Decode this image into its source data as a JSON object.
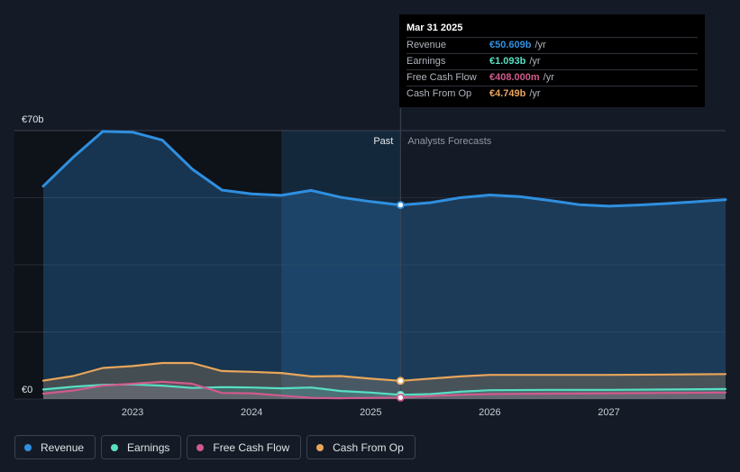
{
  "chart_data": {
    "type": "area",
    "title": "",
    "y_axis": {
      "top_label": "€70b",
      "bottom_label": "€0",
      "ylim": [
        0,
        70
      ]
    },
    "x_ticks": [
      "2023",
      "2024",
      "2025",
      "2026",
      "2027"
    ],
    "x_range": [
      2022.25,
      2027.98
    ],
    "divider_x": 2025.25,
    "past_label": "Past",
    "forecast_label": "Analysts Forecasts",
    "series": [
      {
        "name": "Revenue",
        "color": "#2f8fdf",
        "x": [
          2022.25,
          2022.5,
          2022.75,
          2023.0,
          2023.25,
          2023.5,
          2023.75,
          2024.0,
          2024.25,
          2024.5,
          2024.75,
          2025.0,
          2025.25,
          2025.5,
          2025.75,
          2026.0,
          2026.25,
          2026.5,
          2026.75,
          2027.0,
          2027.25,
          2027.5,
          2027.75,
          2027.98
        ],
        "values": [
          55.5,
          63,
          69.8,
          69.6,
          67.5,
          60,
          54.5,
          53.5,
          53.1,
          54.4,
          52.6,
          51.5,
          50.6,
          51.2,
          52.5,
          53.2,
          52.8,
          51.8,
          50.7,
          50.3,
          50.6,
          51.0,
          51.5,
          52.0
        ]
      },
      {
        "name": "Cash From Op",
        "color": "#e9a65a",
        "x": [
          2022.25,
          2022.5,
          2022.75,
          2023.0,
          2023.25,
          2023.5,
          2023.75,
          2024.0,
          2024.25,
          2024.5,
          2024.75,
          2025.0,
          2025.25,
          2025.75,
          2026.0,
          2026.5,
          2027.0,
          2027.5,
          2027.98
        ],
        "values": [
          4.8,
          6.0,
          8.1,
          8.6,
          9.4,
          9.4,
          7.3,
          7.1,
          6.8,
          5.9,
          6.0,
          5.3,
          4.749,
          5.9,
          6.3,
          6.3,
          6.3,
          6.4,
          6.5
        ]
      },
      {
        "name": "Earnings",
        "color": "#57dfc5",
        "x": [
          2022.25,
          2022.5,
          2022.75,
          2023.0,
          2023.25,
          2023.5,
          2023.75,
          2024.0,
          2024.25,
          2024.5,
          2024.75,
          2025.0,
          2025.25,
          2025.5,
          2025.75,
          2026.0,
          2026.5,
          2027.0,
          2027.5,
          2027.98
        ],
        "values": [
          2.5,
          3.2,
          3.7,
          3.8,
          3.5,
          2.9,
          3.1,
          3.0,
          2.8,
          3.0,
          2.1,
          1.7,
          1.093,
          1.3,
          1.9,
          2.3,
          2.4,
          2.4,
          2.5,
          2.6
        ]
      },
      {
        "name": "Free Cash Flow",
        "color": "#d05a8c",
        "x": [
          2022.25,
          2022.5,
          2022.75,
          2023.0,
          2023.25,
          2023.5,
          2023.75,
          2024.0,
          2024.25,
          2024.5,
          2024.75,
          2025.0,
          2025.25,
          2025.5,
          2025.75,
          2026.0,
          2026.5,
          2027.0,
          2027.5,
          2027.98
        ],
        "values": [
          1.4,
          2.2,
          3.5,
          4.0,
          4.5,
          4.0,
          1.6,
          1.5,
          0.9,
          0.3,
          0.2,
          0.3,
          0.408,
          0.8,
          1.1,
          1.3,
          1.4,
          1.5,
          1.6,
          1.7
        ]
      }
    ],
    "tooltip": {
      "date": "Mar 31 2025",
      "rows": [
        {
          "label": "Revenue",
          "value": "€50.609b",
          "unit": "/yr",
          "color": "#2f8fdf"
        },
        {
          "label": "Earnings",
          "value": "€1.093b",
          "unit": "/yr",
          "color": "#57dfc5"
        },
        {
          "label": "Free Cash Flow",
          "value": "€408.000m",
          "unit": "/yr",
          "color": "#d05a8c"
        },
        {
          "label": "Cash From Op",
          "value": "€4.749b",
          "unit": "/yr",
          "color": "#e9a65a"
        }
      ]
    }
  },
  "legend": [
    {
      "label": "Revenue",
      "color": "#2f8fdf"
    },
    {
      "label": "Earnings",
      "color": "#57dfc5"
    },
    {
      "label": "Free Cash Flow",
      "color": "#d05a8c"
    },
    {
      "label": "Cash From Op",
      "color": "#e9a65a"
    }
  ]
}
